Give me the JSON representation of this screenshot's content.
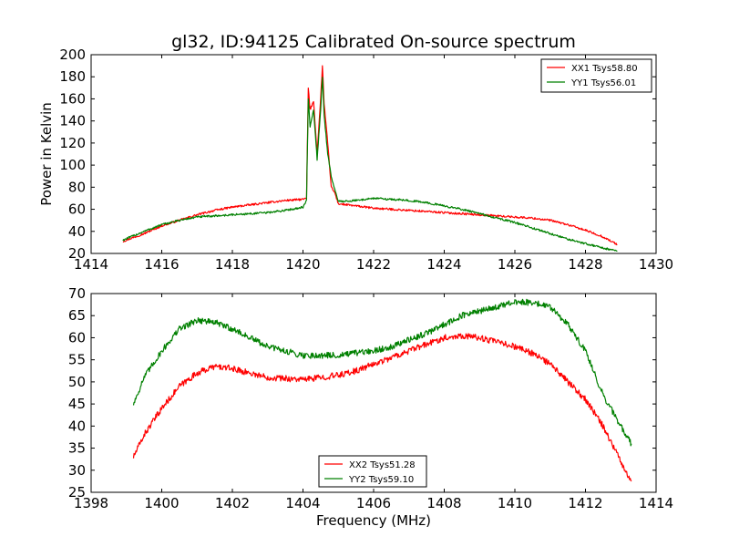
{
  "figure": {
    "title": "gl32, ID:94125 Calibrated On-source spectrum",
    "xlabel": "Frequency (MHz)"
  },
  "chart_data": [
    {
      "type": "line",
      "ylabel": "Power in Kelvin",
      "xlim": [
        1414,
        1430
      ],
      "ylim": [
        20,
        200
      ],
      "xticks": [
        1414,
        1416,
        1418,
        1420,
        1422,
        1424,
        1426,
        1428,
        1430
      ],
      "yticks": [
        20,
        40,
        60,
        80,
        100,
        120,
        140,
        160,
        180,
        200
      ],
      "legend": "top-right",
      "series": [
        {
          "name": "XX1 Tsys58.80",
          "color": "#ff0000",
          "x": [
            1414.9,
            1415.5,
            1416.0,
            1416.5,
            1417.0,
            1417.5,
            1418.0,
            1418.5,
            1419.0,
            1419.5,
            1420.0,
            1420.1,
            1420.15,
            1420.2,
            1420.3,
            1420.4,
            1420.5,
            1420.55,
            1420.6,
            1420.7,
            1420.8,
            1420.9,
            1421.0,
            1421.5,
            1422.0,
            1422.5,
            1423.0,
            1423.5,
            1424.0,
            1424.5,
            1425.0,
            1425.5,
            1426.0,
            1426.5,
            1427.0,
            1427.5,
            1428.0,
            1428.5,
            1428.9
          ],
          "y": [
            31,
            38,
            45,
            50,
            55,
            59,
            62,
            64,
            66,
            68,
            69,
            70,
            170,
            150,
            158,
            110,
            160,
            190,
            155,
            120,
            80,
            75,
            65,
            63,
            61,
            60,
            59,
            58,
            57,
            56,
            55,
            54,
            53,
            52,
            50,
            46,
            41,
            35,
            28
          ]
        },
        {
          "name": "YY1 Tsys56.01",
          "color": "#008000",
          "x": [
            1414.9,
            1415.5,
            1416.0,
            1416.5,
            1417.0,
            1417.5,
            1418.0,
            1418.5,
            1419.0,
            1419.5,
            1420.0,
            1420.1,
            1420.15,
            1420.2,
            1420.3,
            1420.4,
            1420.5,
            1420.55,
            1420.6,
            1420.7,
            1420.8,
            1420.9,
            1421.0,
            1421.5,
            1422.0,
            1422.5,
            1423.0,
            1423.5,
            1424.0,
            1424.5,
            1425.0,
            1425.5,
            1426.0,
            1426.5,
            1427.0,
            1427.5,
            1428.0,
            1428.5,
            1428.9
          ],
          "y": [
            32,
            40,
            46,
            50,
            53,
            54,
            55,
            56,
            57,
            59,
            62,
            68,
            160,
            135,
            150,
            105,
            150,
            180,
            145,
            110,
            90,
            78,
            67,
            68,
            70,
            69,
            68,
            66,
            63,
            60,
            56,
            52,
            48,
            43,
            38,
            33,
            29,
            25,
            22
          ]
        }
      ]
    },
    {
      "type": "line",
      "ylabel": "",
      "xlim": [
        1398,
        1414
      ],
      "ylim": [
        25,
        70
      ],
      "xticks": [
        1398,
        1400,
        1402,
        1404,
        1406,
        1408,
        1410,
        1412,
        1414
      ],
      "yticks": [
        25,
        30,
        35,
        40,
        45,
        50,
        55,
        60,
        65,
        70
      ],
      "legend": "bottom-center",
      "series": [
        {
          "name": "XX2 Tsys51.28",
          "color": "#ff0000",
          "x": [
            1399.2,
            1399.5,
            1400.0,
            1400.5,
            1401.0,
            1401.5,
            1402.0,
            1402.5,
            1403.0,
            1403.5,
            1404.0,
            1404.5,
            1405.0,
            1405.5,
            1406.0,
            1406.5,
            1407.0,
            1407.5,
            1408.0,
            1408.5,
            1409.0,
            1409.5,
            1410.0,
            1410.5,
            1411.0,
            1411.5,
            1412.0,
            1412.5,
            1413.0,
            1413.3
          ],
          "y": [
            33,
            38,
            44,
            49,
            52,
            53.5,
            53,
            52,
            51,
            50.8,
            50.5,
            51,
            51.5,
            52.5,
            54,
            55.5,
            57,
            58.5,
            60,
            60.5,
            60,
            59,
            58,
            56.5,
            54,
            50,
            46,
            40,
            32,
            27.5
          ]
        },
        {
          "name": "YY2 Tsys59.10",
          "color": "#008000",
          "x": [
            1399.2,
            1399.5,
            1400.0,
            1400.5,
            1401.0,
            1401.5,
            1402.0,
            1402.5,
            1403.0,
            1403.5,
            1404.0,
            1404.5,
            1405.0,
            1405.5,
            1406.0,
            1406.5,
            1407.0,
            1407.5,
            1408.0,
            1408.5,
            1409.0,
            1409.5,
            1410.0,
            1410.5,
            1411.0,
            1411.5,
            1412.0,
            1412.5,
            1413.0,
            1413.3
          ],
          "y": [
            45,
            51,
            57,
            62,
            64,
            63.5,
            62,
            60,
            58,
            57,
            56,
            56,
            56,
            56.5,
            57,
            58,
            59.5,
            61,
            63,
            65,
            66,
            67,
            68,
            68,
            67,
            63,
            57,
            47,
            40,
            36
          ]
        }
      ]
    }
  ]
}
